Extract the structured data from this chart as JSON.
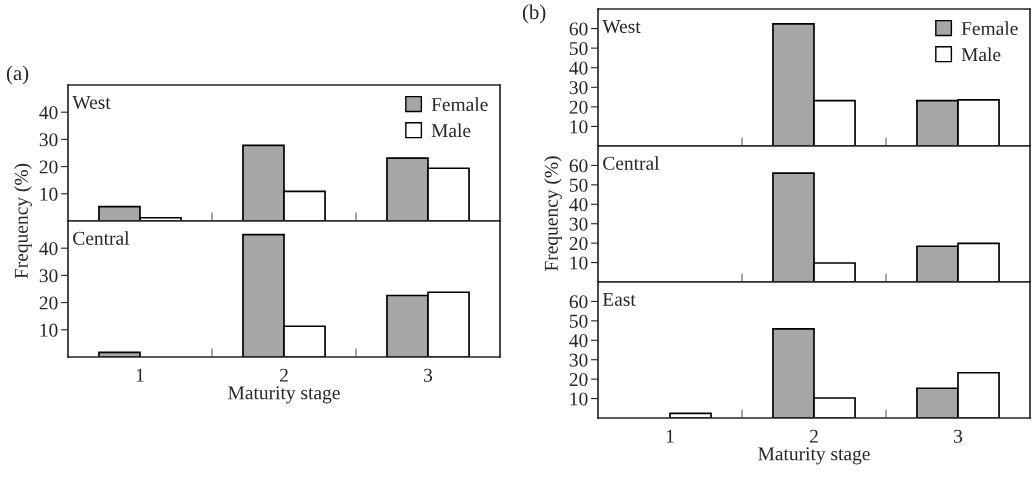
{
  "chart_data": [
    {
      "type": "bar",
      "title": "(a)",
      "annotations": [
        "West"
      ],
      "ylabel": "Frequency (%)",
      "categories": [
        "1",
        "2",
        "3"
      ],
      "ylim": [
        0,
        50
      ],
      "yticks": [
        10,
        20,
        30,
        40
      ],
      "tick_labels": "y",
      "legend": "top right",
      "series": [
        {
          "name": "Female",
          "color": "#a6a6a6",
          "values": [
            5.3,
            27.8,
            23.1
          ]
        },
        {
          "name": "Male",
          "color": "#ffffff",
          "values": [
            1.2,
            10.9,
            19.4
          ]
        }
      ]
    },
    {
      "type": "bar",
      "annotations": [
        "Central"
      ],
      "xlabel": "Maturity stage",
      "categories": [
        "1",
        "2",
        "3"
      ],
      "ylim": [
        0,
        50
      ],
      "yticks": [
        10,
        20,
        30,
        40
      ],
      "series": [
        {
          "color": "#a6a6a6",
          "values": [
            1.7,
            45,
            22.6
          ]
        },
        {
          "color": "#ffffff",
          "values": [
            null,
            11.3,
            23.8
          ]
        }
      ]
    },
    {
      "type": "bar",
      "title": "(b)",
      "annotations": [
        "West"
      ],
      "categories": [
        "1",
        "2",
        "3"
      ],
      "ylim": [
        0,
        70
      ],
      "yticks": [
        10,
        20,
        30,
        40,
        50,
        60
      ],
      "tick_labels": "y",
      "legend": "top right",
      "series": [
        {
          "name": "Female",
          "color": "#a6a6a6",
          "values": [
            null,
            62.4,
            23.2
          ]
        },
        {
          "name": "Male",
          "color": "#ffffff",
          "values": [
            null,
            23.2,
            23.6
          ]
        }
      ]
    },
    {
      "type": "bar",
      "annotations": [
        "Central"
      ],
      "ylabel": "Frequency (%)",
      "categories": [
        "1",
        "2",
        "3"
      ],
      "ylim": [
        0,
        70
      ],
      "yticks": [
        10,
        20,
        30,
        40,
        50,
        60
      ],
      "tick_labels": "y",
      "series": [
        {
          "color": "#a6a6a6",
          "values": [
            null,
            56,
            18.4
          ]
        },
        {
          "color": "#ffffff",
          "values": [
            null,
            9.8,
            19.9
          ]
        }
      ]
    },
    {
      "type": "bar",
      "annotations": [
        "East"
      ],
      "xlabel": "Maturity stage",
      "categories": [
        "1",
        "2",
        "3"
      ],
      "ylim": [
        0,
        70
      ],
      "yticks": [
        10,
        20,
        30,
        40,
        50,
        60
      ],
      "series": [
        {
          "color": "#a6a6a6",
          "values": [
            null,
            45.9,
            15.3
          ]
        },
        {
          "color": "#ffffff",
          "values": [
            2.4,
            10.3,
            23.3
          ]
        }
      ]
    }
  ]
}
